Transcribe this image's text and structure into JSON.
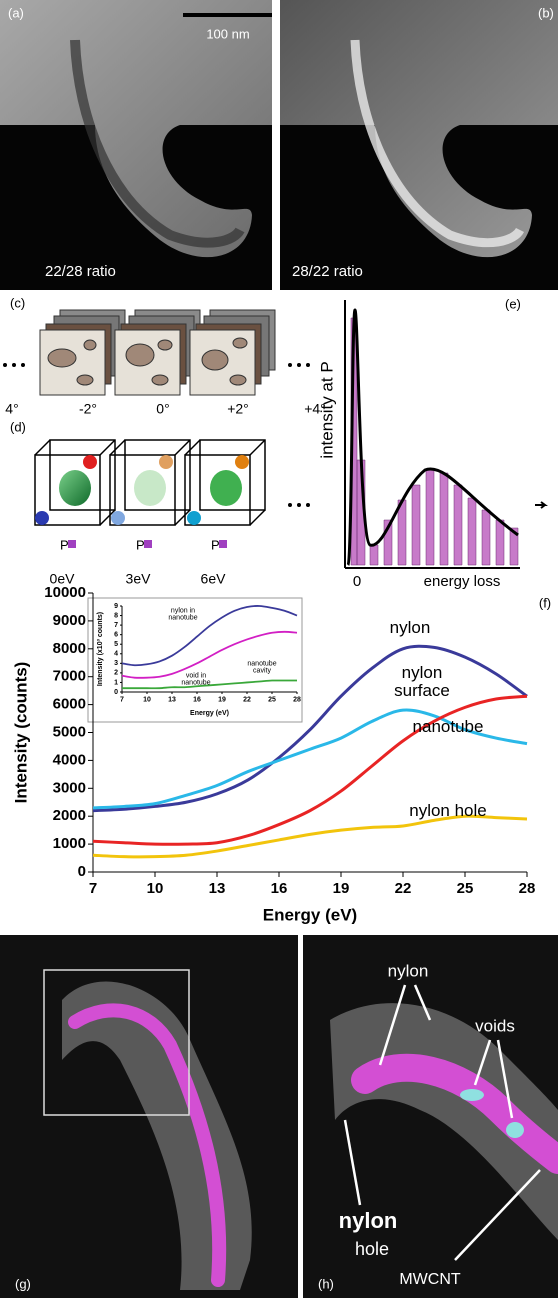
{
  "figure": {
    "a": {
      "label": "(a)",
      "scale_bar": "100 nm",
      "caption": "22/28 ratio"
    },
    "b": {
      "label": "(b)",
      "caption": "28/22 ratio"
    },
    "c": {
      "label": "(c)",
      "angles": [
        "4°",
        "-2°",
        "0°",
        "+2°",
        "+4°"
      ]
    },
    "d": {
      "label": "(d)",
      "energies": [
        "0eV",
        "3eV",
        "6eV"
      ],
      "point": "P"
    },
    "e": {
      "label": "(e)",
      "ylabel": "intensity at P",
      "xlabel": "energy loss",
      "xtick": "0"
    },
    "f": {
      "label": "(f)"
    },
    "g": {
      "label": "(g)"
    },
    "h": {
      "label": "(h)",
      "annotations": [
        "nylon",
        "voids",
        "nylon",
        "hole",
        "MWCNT"
      ]
    }
  },
  "chart_data": [
    {
      "type": "line",
      "xlabel": "Energy (eV)",
      "ylabel": "Intensity (counts)",
      "x": [
        7,
        8.5,
        10,
        11.5,
        13,
        14.5,
        16,
        17.5,
        19,
        20.5,
        22,
        23.5,
        25,
        26.5,
        28
      ],
      "xlim": [
        7,
        28
      ],
      "xticks": [
        7,
        10,
        13,
        16,
        19,
        22,
        25,
        28
      ],
      "ylim": [
        0,
        10000
      ],
      "yticks": [
        0,
        1000,
        2000,
        3000,
        4000,
        5000,
        6000,
        7000,
        8000,
        9000,
        10000
      ],
      "series": [
        {
          "name": "nylon",
          "color": "#3a3a9a",
          "values": [
            2200,
            2250,
            2350,
            2500,
            2800,
            3300,
            4100,
            5100,
            6300,
            7300,
            8000,
            8050,
            7700,
            7100,
            6300
          ]
        },
        {
          "name": "nylon surface",
          "color": "#2ab8e8",
          "values": [
            2300,
            2350,
            2450,
            2750,
            3100,
            3600,
            4000,
            4400,
            4800,
            5400,
            5800,
            5600,
            5100,
            4800,
            4600
          ]
        },
        {
          "name": "nanotube",
          "color": "#e82424",
          "values": [
            1100,
            1050,
            1000,
            1000,
            1050,
            1300,
            1700,
            2200,
            2900,
            3800,
            4700,
            5400,
            5900,
            6200,
            6300
          ]
        },
        {
          "name": "nylon hole",
          "color": "#f2c40c",
          "values": [
            600,
            550,
            550,
            600,
            750,
            950,
            1150,
            1350,
            1500,
            1600,
            1650,
            1850,
            2000,
            1950,
            1900
          ]
        }
      ]
    },
    {
      "type": "line",
      "xlabel": "Energy (eV)",
      "ylabel": "Intensity (x10³ counts)",
      "x": [
        7,
        8.5,
        10,
        11.5,
        13,
        14.5,
        16,
        17.5,
        19,
        20.5,
        22,
        23.5,
        25,
        26.5,
        28
      ],
      "xlim": [
        7,
        28
      ],
      "xticks": [
        7,
        10,
        13,
        16,
        19,
        22,
        25,
        28
      ],
      "ylim": [
        0,
        9
      ],
      "yticks": [
        0,
        1,
        2,
        3,
        4,
        5,
        6,
        7,
        8,
        9
      ],
      "series": [
        {
          "name": "nylon in nanotube",
          "color": "#3a3a9a",
          "values": [
            3.0,
            2.8,
            2.9,
            3.2,
            3.8,
            4.7,
            5.8,
            6.9,
            7.8,
            8.5,
            8.9,
            9.0,
            8.8,
            8.5,
            8.0
          ]
        },
        {
          "name": "nanotube cavity",
          "color": "#d21fc4",
          "values": [
            1.7,
            1.5,
            1.5,
            1.6,
            1.9,
            2.4,
            3.0,
            3.7,
            4.4,
            5.0,
            5.5,
            5.9,
            6.2,
            6.3,
            6.2
          ]
        },
        {
          "name": "void in nanotube",
          "color": "#3aa83a",
          "values": [
            0.4,
            0.4,
            0.4,
            0.4,
            0.5,
            0.5,
            0.6,
            0.7,
            0.8,
            0.9,
            1.0,
            1.1,
            1.2,
            1.2,
            1.2
          ]
        }
      ]
    }
  ]
}
